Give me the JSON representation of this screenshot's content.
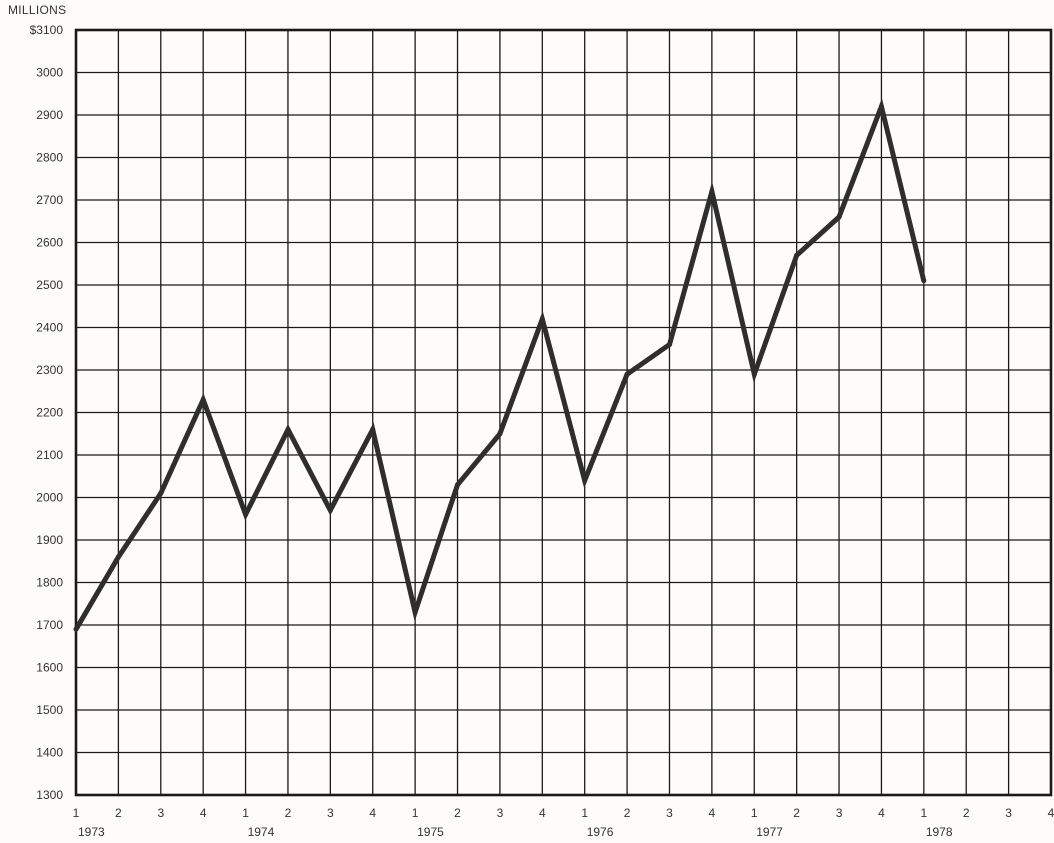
{
  "chart_data": {
    "type": "line",
    "units_label": "MILLIONS",
    "title": "",
    "xlabel": "",
    "ylabel": "",
    "ylim": [
      1300,
      3100
    ],
    "y_ticks": [
      "$3100",
      "3000",
      "2900",
      "2800",
      "2700",
      "2600",
      "2500",
      "2400",
      "2300",
      "2200",
      "2100",
      "2000",
      "1900",
      "1800",
      "1700",
      "1600",
      "1500",
      "1400",
      "1300"
    ],
    "x_quarter_labels": [
      "1",
      "2",
      "3",
      "4",
      "1",
      "2",
      "3",
      "4",
      "1",
      "2",
      "3",
      "4",
      "1",
      "2",
      "3",
      "4",
      "1",
      "2",
      "3",
      "4",
      "1",
      "2",
      "3",
      "4"
    ],
    "x_year_labels": [
      "1973",
      "1974",
      "1975",
      "1976",
      "1977",
      "1978"
    ],
    "grid": true,
    "series": [
      {
        "values": [
          1690,
          1860,
          2010,
          2230,
          1960,
          2160,
          1970,
          2160,
          1730,
          2030,
          2150,
          2420,
          2040,
          2290,
          2360,
          2720,
          2290,
          2570,
          2660,
          2920,
          2510
        ]
      }
    ],
    "colors": {
      "line": "#2e2e2e",
      "grid": "#1a1a1a",
      "frame": "#1a1a1a",
      "text": "#333333"
    }
  }
}
